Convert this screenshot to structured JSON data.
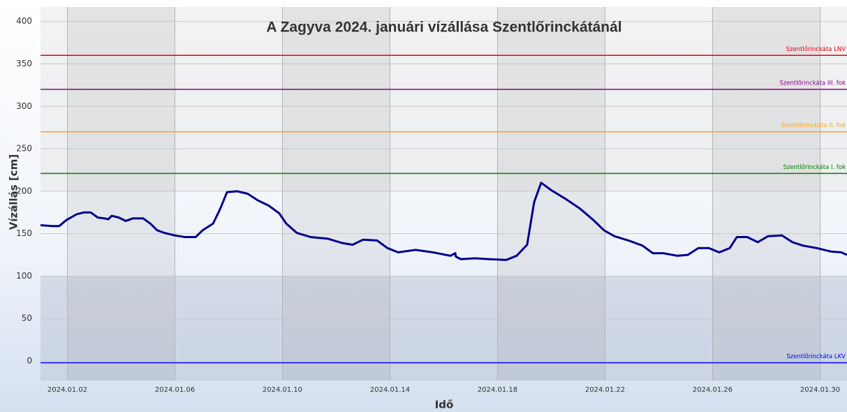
{
  "chart_data": {
    "type": "line",
    "title": "A Zagyva  2024. januári vízállása Szentlőrinckátánál",
    "x_label": "Idő",
    "y_label": "Vízállás [cm]",
    "x": [
      1.0,
      1.44,
      1.7,
      1.96,
      2.35,
      2.61,
      2.87,
      3.13,
      3.39,
      3.52,
      3.65,
      3.91,
      4.17,
      4.43,
      4.82,
      5.08,
      5.34,
      5.6,
      5.99,
      6.38,
      6.77,
      7.03,
      7.42,
      7.68,
      7.94,
      8.32,
      8.71,
      9.1,
      9.49,
      9.88,
      10.14,
      10.53,
      11.05,
      11.7,
      12.22,
      12.61,
      13.0,
      13.52,
      13.91,
      14.3,
      14.95,
      15.6,
      16.25,
      16.43,
      16.45,
      16.64,
      17.16,
      17.68,
      18.32,
      18.71,
      19.1,
      19.36,
      19.62,
      20.01,
      20.53,
      21.05,
      21.57,
      21.96,
      22.35,
      22.87,
      23.39,
      23.78,
      24.17,
      24.69,
      25.08,
      25.47,
      25.86,
      26.25,
      26.64,
      26.9,
      27.29,
      27.68,
      28.06,
      28.58,
      28.97,
      29.36,
      29.88,
      30.4,
      30.79,
      31.0
    ],
    "series": [
      {
        "name": "Szentlőrinckáta",
        "color": "#00008b",
        "values": [
          160,
          159,
          159,
          166,
          173,
          175,
          175,
          169,
          168,
          167,
          171,
          169,
          165,
          168,
          168,
          162,
          154,
          151,
          148,
          146,
          146,
          154,
          162,
          179,
          199,
          200,
          197,
          189,
          183,
          174,
          162,
          151,
          146,
          144,
          139,
          137,
          143,
          142,
          133,
          128,
          131,
          128,
          124,
          127,
          123,
          120,
          121,
          120,
          119,
          124,
          137,
          187,
          210,
          201,
          191,
          180,
          166,
          154,
          147,
          142,
          136,
          127,
          127,
          124,
          125,
          133,
          133,
          128,
          133,
          146,
          146,
          140,
          147,
          148,
          140,
          136,
          133,
          129,
          128,
          125
        ]
      }
    ],
    "reference_lines": [
      {
        "name": "Szentlőrinckáta LNV",
        "value": 360,
        "color": "#e8000b"
      },
      {
        "name": "Szentlőrinckáta III. fok",
        "value": 320,
        "color": "#8b008b"
      },
      {
        "name": "Szentlőrinckáta II. fok",
        "value": 270,
        "color": "#f5a623"
      },
      {
        "name": "Szentlőrinckáta I. fok",
        "value": 221,
        "color": "#008000"
      },
      {
        "name": "Szentlőrinckáta LKV",
        "value": -2,
        "color": "#0000ff"
      }
    ],
    "xlim": [
      1,
      31
    ],
    "xticks": [
      {
        "value": 2,
        "label": "2024.01.02"
      },
      {
        "value": 6,
        "label": "2024.01.06"
      },
      {
        "value": 10,
        "label": "2024.01.10"
      },
      {
        "value": 14,
        "label": "2024.01.14"
      },
      {
        "value": 18,
        "label": "2024.01.18"
      },
      {
        "value": 22,
        "label": "2024.01.22"
      },
      {
        "value": 26,
        "label": "2024.01.26"
      },
      {
        "value": 30,
        "label": "2024.01.30"
      }
    ],
    "ylim": [
      -23,
      417
    ],
    "yticks": [
      0,
      50,
      100,
      150,
      200,
      250,
      300,
      350,
      400
    ],
    "grid": true
  }
}
